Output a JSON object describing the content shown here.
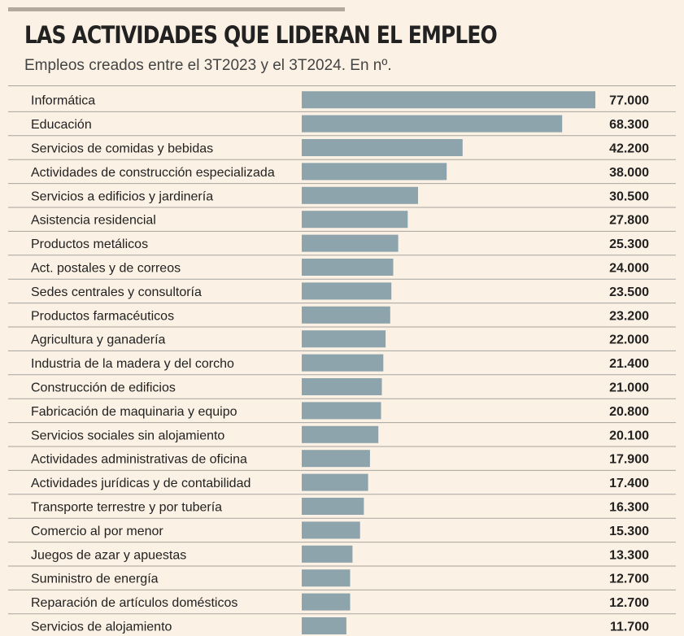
{
  "chart_data": {
    "type": "bar",
    "orientation": "horizontal",
    "title": "LAS ACTIVIDADES QUE LIDERAN EL EMPLEO",
    "subtitle": "Empleos creados entre el 3T2023 y el 3T2024. En nº.",
    "xlabel": "",
    "ylabel": "",
    "xlim": [
      0,
      77000
    ],
    "categories": [
      "Informática",
      "Educación",
      "Servicios de comidas y bebidas",
      "Actividades de construcción especializada",
      "Servicios a edificios y jardinería",
      "Asistencia residencial",
      "Productos metálicos",
      "Act. postales y de correos",
      "Sedes centrales y consultoría",
      "Productos farmacéuticos",
      "Agricultura y ganadería",
      "Industria de la madera y del corcho",
      "Construcción de edificios",
      "Fabricación de maquinaria y equipo",
      "Servicios sociales sin alojamiento",
      "Actividades administrativas de oficina",
      "Actividades jurídicas y de contabilidad",
      "Transporte terrestre y por tubería",
      "Comercio al por menor",
      "Juegos de azar y apuestas",
      "Suministro de energía",
      "Reparación de artículos domésticos",
      "Servicios de alojamiento"
    ],
    "values": [
      77000,
      68300,
      42200,
      38000,
      30500,
      27800,
      25300,
      24000,
      23500,
      23200,
      22000,
      21400,
      21000,
      20800,
      20100,
      17900,
      17400,
      16300,
      15300,
      13300,
      12700,
      12700,
      11700
    ],
    "value_labels": [
      "77.000",
      "68.300",
      "42.200",
      "38.000",
      "30.500",
      "27.800",
      "25.300",
      "24.000",
      "23.500",
      "23.200",
      "22.000",
      "21.400",
      "21.000",
      "20.800",
      "20.100",
      "17.900",
      "17.400",
      "16.300",
      "15.300",
      "13.300",
      "12.700",
      "12.700",
      "11.700"
    ],
    "colors": {
      "bar": "#8ea4ac",
      "divider": "#a8a49e",
      "background": "#fbf1e4"
    }
  }
}
